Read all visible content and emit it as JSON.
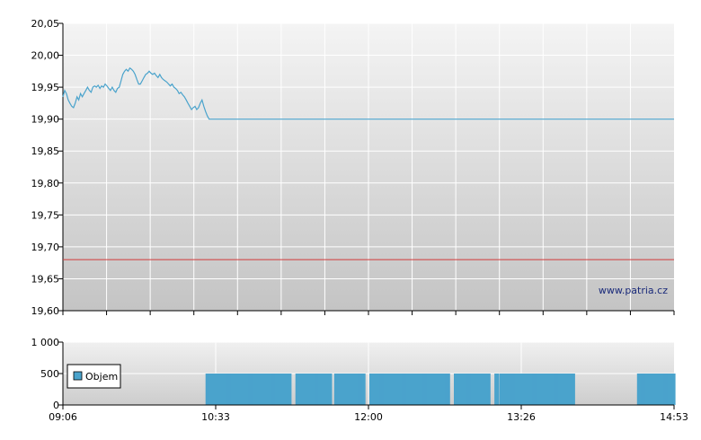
{
  "chart_data": [
    {
      "type": "line",
      "ylim": [
        19.6,
        20.05
      ],
      "y_ticks": [
        "19,60",
        "19,65",
        "19,70",
        "19,75",
        "19,80",
        "19,85",
        "19,90",
        "19,95",
        "20,00",
        "20,05"
      ],
      "x_tick_labels": [
        "09:06",
        "10:33",
        "12:00",
        "13:26",
        "14:53"
      ],
      "x_range_minutes": [
        546,
        893
      ],
      "reference_line": 19.68,
      "watermark": "www.patria.cz",
      "grid": true,
      "series": [
        {
          "color": "#4aa3cc",
          "points": [
            [
              546,
              19.935
            ],
            [
              547,
              19.945
            ],
            [
              548,
              19.94
            ],
            [
              549,
              19.93
            ],
            [
              550,
              19.925
            ],
            [
              551,
              19.92
            ],
            [
              552,
              19.918
            ],
            [
              553,
              19.925
            ],
            [
              554,
              19.935
            ],
            [
              555,
              19.93
            ],
            [
              556,
              19.94
            ],
            [
              557,
              19.935
            ],
            [
              558,
              19.94
            ],
            [
              559,
              19.945
            ],
            [
              560,
              19.95
            ],
            [
              561,
              19.945
            ],
            [
              562,
              19.942
            ],
            [
              563,
              19.95
            ],
            [
              564,
              19.952
            ],
            [
              565,
              19.95
            ],
            [
              566,
              19.953
            ],
            [
              567,
              19.948
            ],
            [
              568,
              19.952
            ],
            [
              569,
              19.95
            ],
            [
              570,
              19.955
            ],
            [
              571,
              19.952
            ],
            [
              572,
              19.948
            ],
            [
              573,
              19.945
            ],
            [
              574,
              19.95
            ],
            [
              575,
              19.945
            ],
            [
              576,
              19.942
            ],
            [
              577,
              19.948
            ],
            [
              578,
              19.95
            ],
            [
              579,
              19.96
            ],
            [
              580,
              19.97
            ],
            [
              581,
              19.975
            ],
            [
              582,
              19.978
            ],
            [
              583,
              19.975
            ],
            [
              584,
              19.98
            ],
            [
              585,
              19.978
            ],
            [
              586,
              19.975
            ],
            [
              587,
              19.97
            ],
            [
              588,
              19.962
            ],
            [
              589,
              19.955
            ],
            [
              590,
              19.955
            ],
            [
              591,
              19.96
            ],
            [
              592,
              19.965
            ],
            [
              593,
              19.97
            ],
            [
              594,
              19.972
            ],
            [
              595,
              19.975
            ],
            [
              596,
              19.972
            ],
            [
              597,
              19.97
            ],
            [
              598,
              19.972
            ],
            [
              599,
              19.968
            ],
            [
              600,
              19.965
            ],
            [
              601,
              19.97
            ],
            [
              602,
              19.965
            ],
            [
              603,
              19.962
            ],
            [
              604,
              19.96
            ],
            [
              605,
              19.958
            ],
            [
              606,
              19.955
            ],
            [
              607,
              19.952
            ],
            [
              608,
              19.955
            ],
            [
              609,
              19.95
            ],
            [
              610,
              19.948
            ],
            [
              611,
              19.945
            ],
            [
              612,
              19.94
            ],
            [
              613,
              19.942
            ],
            [
              614,
              19.938
            ],
            [
              615,
              19.935
            ],
            [
              616,
              19.93
            ],
            [
              617,
              19.925
            ],
            [
              618,
              19.92
            ],
            [
              619,
              19.915
            ],
            [
              620,
              19.918
            ],
            [
              621,
              19.92
            ],
            [
              622,
              19.915
            ],
            [
              623,
              19.918
            ],
            [
              624,
              19.925
            ],
            [
              625,
              19.93
            ],
            [
              626,
              19.92
            ],
            [
              627,
              19.912
            ],
            [
              628,
              19.905
            ],
            [
              629,
              19.9
            ],
            [
              893,
              19.9
            ]
          ]
        }
      ]
    },
    {
      "type": "bar",
      "ylim": [
        0,
        1000
      ],
      "y_ticks": [
        "0",
        "500",
        "1 000"
      ],
      "x_tick_labels": [
        "09:06",
        "10:33",
        "12:00",
        "13:26",
        "14:53"
      ],
      "legend": "Objem",
      "color": "#4aa3cc",
      "bar_value": 500,
      "bar_minutes": [
        "mixed",
        [
          [
            627,
            675
          ],
          [
            678,
            698
          ],
          [
            700,
            717
          ],
          [
            720,
            765
          ],
          [
            768,
            788
          ],
          [
            791,
            793
          ],
          [
            794,
            836
          ],
          [
            872,
            893
          ]
        ]
      ]
    }
  ]
}
